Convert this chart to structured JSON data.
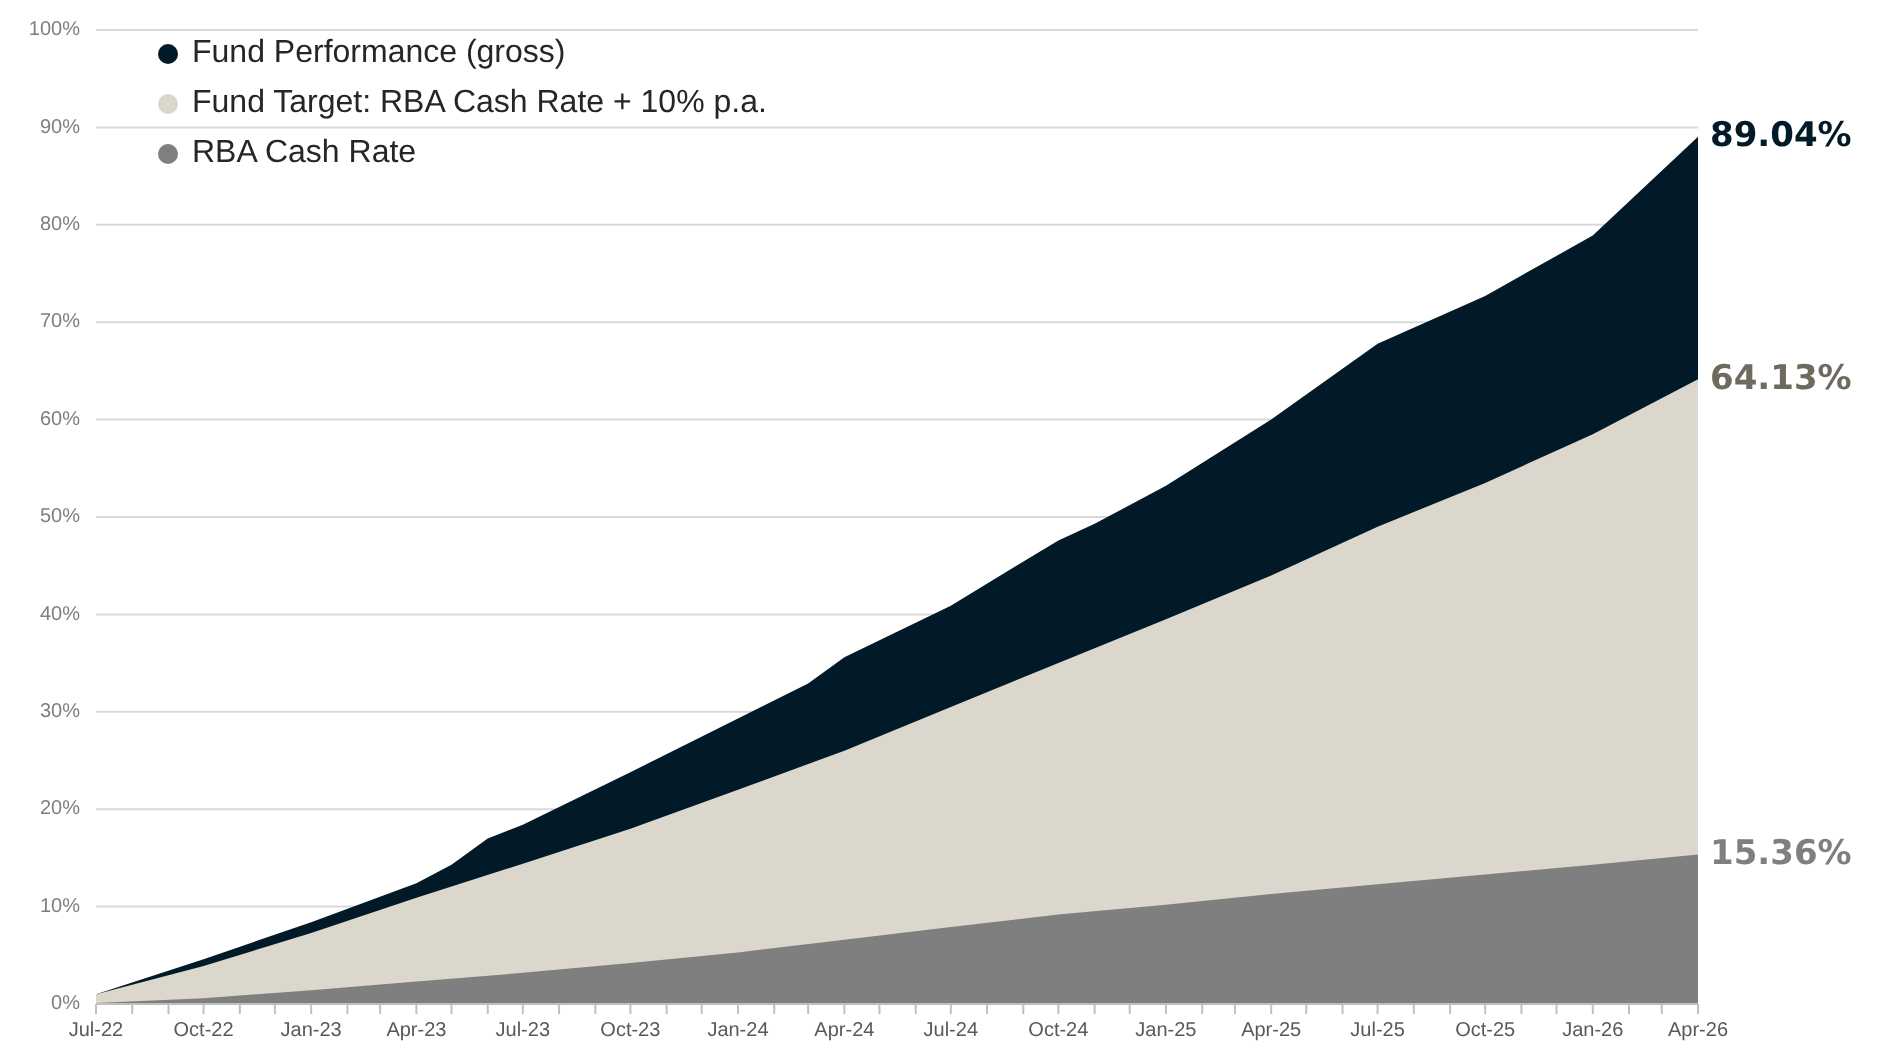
{
  "chart_data": {
    "type": "area",
    "x": [
      "2022-07",
      "2022-10",
      "2023-01",
      "2023-04",
      "2023-07",
      "2023-10",
      "2024-01",
      "2024-04",
      "2024-07",
      "2024-10",
      "2025-01",
      "2025-04",
      "2025-07",
      "2025-10",
      "2026-01",
      "2026-04"
    ],
    "series": [
      {
        "name": "Fund Performance (gross)",
        "color": "#021a28",
        "x": [
          "2022-07",
          "2022-10",
          "2023-01",
          "2023-04",
          "2023-05",
          "2023-06",
          "2023-07",
          "2023-10",
          "2024-01",
          "2024-03",
          "2024-04",
          "2024-07",
          "2024-10",
          "2024-11",
          "2025-01",
          "2025-04",
          "2025-07",
          "2025-10",
          "2026-01",
          "2026-04"
        ],
        "values": [
          1.0,
          4.6,
          8.4,
          12.4,
          14.3,
          17.0,
          18.4,
          23.8,
          29.3,
          32.9,
          35.6,
          40.9,
          47.6,
          49.3,
          53.2,
          60.0,
          67.8,
          72.7,
          78.9,
          89.04
        ],
        "value_labels": [
          null,
          null,
          null,
          null,
          null,
          null,
          null,
          null,
          null,
          null,
          null,
          null,
          null,
          null,
          null,
          null,
          null,
          null,
          null,
          "89.04%"
        ]
      },
      {
        "name": "Fund Target: RBA Cash Rate + 10% p.a.",
        "color": "#dbd7cc",
        "values": [
          1.0,
          3.9,
          7.3,
          10.9,
          14.4,
          18.0,
          22.0,
          26.0,
          30.5,
          35.0,
          39.5,
          44.0,
          49.0,
          53.5,
          58.5,
          64.13
        ],
        "value_labels": [
          null,
          null,
          null,
          null,
          null,
          null,
          null,
          null,
          null,
          null,
          null,
          null,
          null,
          null,
          null,
          "64.13%"
        ]
      },
      {
        "name": "RBA Cash Rate",
        "color": "#7f7f7f",
        "values": [
          0.1,
          0.6,
          1.4,
          2.3,
          3.2,
          4.2,
          5.3,
          6.6,
          7.9,
          9.2,
          10.2,
          11.3,
          12.3,
          13.3,
          14.3,
          15.36
        ],
        "value_labels": [
          null,
          null,
          null,
          null,
          null,
          null,
          null,
          null,
          null,
          null,
          null,
          null,
          null,
          null,
          null,
          "15.36%"
        ]
      }
    ],
    "xlim": [
      "2022-07",
      "2026-04"
    ],
    "xticks": [
      {
        "value": "2022-07",
        "label": "Jul-22"
      },
      {
        "value": "2022-08",
        "label": null
      },
      {
        "value": "2022-09",
        "label": null
      },
      {
        "value": "2022-10",
        "label": "Oct-22"
      },
      {
        "value": "2022-11",
        "label": null
      },
      {
        "value": "2022-12",
        "label": null
      },
      {
        "value": "2023-01",
        "label": "Jan-23"
      },
      {
        "value": "2023-02",
        "label": null
      },
      {
        "value": "2023-03",
        "label": null
      },
      {
        "value": "2023-04",
        "label": "Apr-23"
      },
      {
        "value": "2023-05",
        "label": null
      },
      {
        "value": "2023-06",
        "label": null
      },
      {
        "value": "2023-07",
        "label": "Jul-23"
      },
      {
        "value": "2023-08",
        "label": null
      },
      {
        "value": "2023-09",
        "label": null
      },
      {
        "value": "2023-10",
        "label": "Oct-23"
      },
      {
        "value": "2023-11",
        "label": null
      },
      {
        "value": "2023-12",
        "label": null
      },
      {
        "value": "2024-01",
        "label": "Jan-24"
      },
      {
        "value": "2024-02",
        "label": null
      },
      {
        "value": "2024-03",
        "label": null
      },
      {
        "value": "2024-04",
        "label": "Apr-24"
      },
      {
        "value": "2024-05",
        "label": null
      },
      {
        "value": "2024-06",
        "label": null
      },
      {
        "value": "2024-07",
        "label": "Jul-24"
      },
      {
        "value": "2024-08",
        "label": null
      },
      {
        "value": "2024-09",
        "label": null
      },
      {
        "value": "2024-10",
        "label": "Oct-24"
      },
      {
        "value": "2024-11",
        "label": null
      },
      {
        "value": "2024-12",
        "label": null
      },
      {
        "value": "2025-01",
        "label": "Jan-25"
      },
      {
        "value": "2025-02",
        "label": null
      },
      {
        "value": "2025-03",
        "label": null
      },
      {
        "value": "2025-04",
        "label": "Apr-25"
      },
      {
        "value": "2025-05",
        "label": null
      },
      {
        "value": "2025-06",
        "label": null
      },
      {
        "value": "2025-07",
        "label": "Jul-25"
      },
      {
        "value": "2025-08",
        "label": null
      },
      {
        "value": "2025-09",
        "label": null
      },
      {
        "value": "2025-10",
        "label": "Oct-25"
      },
      {
        "value": "2025-11",
        "label": null
      },
      {
        "value": "2025-12",
        "label": null
      },
      {
        "value": "2026-01",
        "label": "Jan-26"
      },
      {
        "value": "2026-02",
        "label": null
      },
      {
        "value": "2026-03",
        "label": null
      },
      {
        "value": "2026-04",
        "label": "Apr-26"
      }
    ],
    "ylim": [
      0,
      100
    ],
    "yticks": [
      {
        "value": 0,
        "label": "0%"
      },
      {
        "value": 10,
        "label": "10%"
      },
      {
        "value": 20,
        "label": "20%"
      },
      {
        "value": 30,
        "label": "30%"
      },
      {
        "value": 40,
        "label": "40%"
      },
      {
        "value": 50,
        "label": "50%"
      },
      {
        "value": 60,
        "label": "60%"
      },
      {
        "value": 70,
        "label": "70%"
      },
      {
        "value": 80,
        "label": "80%"
      },
      {
        "value": 90,
        "label": "90%"
      },
      {
        "value": 100,
        "label": "100%"
      }
    ],
    "grid": "y",
    "legend": "top left"
  }
}
